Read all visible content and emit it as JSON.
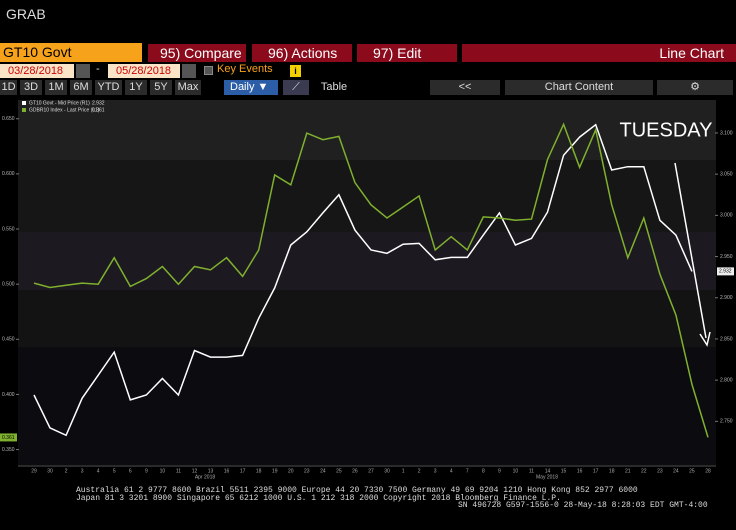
{
  "header": {
    "title": "GRAB"
  },
  "toolbar": {
    "security": "GT10 Govt",
    "compare": "95) Compare",
    "actions": "96) Actions",
    "edit": "97) Edit",
    "view": "Line Chart"
  },
  "range": {
    "start": "03/28/2018",
    "separator": "-",
    "end": "05/28/2018",
    "key_events": "Key Events"
  },
  "periods": [
    "1D",
    "3D",
    "1M",
    "6M",
    "YTD",
    "1Y",
    "5Y",
    "Max"
  ],
  "frequency": "Daily",
  "table": "Table",
  "back": "<<",
  "chart_content": "Chart Content",
  "chart_data": {
    "type": "line",
    "categories": [
      "29",
      "30",
      "2",
      "3",
      "4",
      "5",
      "6",
      "9",
      "10",
      "11",
      "12",
      "13",
      "16",
      "17",
      "18",
      "19",
      "20",
      "23",
      "24",
      "25",
      "26",
      "27",
      "30",
      "1",
      "2",
      "3",
      "4",
      "7",
      "8",
      "9",
      "10",
      "11",
      "14",
      "15",
      "16",
      "17",
      "18",
      "21",
      "22",
      "23",
      "24",
      "25",
      "28"
    ],
    "month_labels": [
      "Apr 2018",
      "May 2018"
    ],
    "series": [
      {
        "name": "GT10 Govt - Mid Price (R1)",
        "color": "#ffffff",
        "axis": "y2",
        "values": [
          2.782,
          2.742,
          2.733,
          2.778,
          2.806,
          2.834,
          2.776,
          2.782,
          2.802,
          2.782,
          2.836,
          2.828,
          2.828,
          2.83,
          2.875,
          2.912,
          2.964,
          2.98,
          3.003,
          3.025,
          2.982,
          2.958,
          2.954,
          2.965,
          2.966,
          2.946,
          2.949,
          2.949,
          2.976,
          3.003,
          2.964,
          2.972,
          3.004,
          3.073,
          3.095,
          3.11,
          3.055,
          3.059,
          3.059,
          2.994,
          2.976,
          2.932,
          null
        ]
      },
      {
        "name": "GDBR10 Index - Last Price (L1)",
        "color": "#7fb12e",
        "values": [
          0.501,
          0.497,
          0.499,
          0.501,
          0.5,
          0.524,
          0.498,
          0.505,
          0.516,
          0.5,
          0.516,
          0.513,
          0.524,
          0.507,
          0.531,
          0.599,
          0.59,
          0.637,
          0.631,
          0.634,
          0.592,
          0.572,
          0.56,
          0.57,
          0.58,
          0.531,
          0.543,
          0.531,
          0.561,
          0.56,
          0.558,
          0.559,
          0.613,
          0.645,
          0.606,
          0.64,
          0.572,
          0.524,
          0.56,
          0.509,
          0.472,
          0.409,
          0.361
        ]
      }
    ],
    "ylim": [
      0.336,
      0.667
    ],
    "yticks": [
      {
        "value": 0.65,
        "label": "0.650"
      },
      {
        "value": 0.6,
        "label": "0.600"
      },
      {
        "value": 0.55,
        "label": "0.550"
      },
      {
        "value": 0.5,
        "label": "0.500"
      },
      {
        "value": 0.45,
        "label": "0.450"
      },
      {
        "value": 0.4,
        "label": "0.400"
      },
      {
        "value": 0.35,
        "label": "0.350"
      }
    ],
    "y2lim": [
      2.697,
      3.14
    ],
    "y2ticks": [
      {
        "value": 3.1,
        "label": "3.100"
      },
      {
        "value": 3.05,
        "label": "3.050"
      },
      {
        "value": 3,
        "label": "3.000"
      },
      {
        "value": 2.95,
        "label": "2.950"
      },
      {
        "value": 2.9,
        "label": "2.900"
      },
      {
        "value": 2.85,
        "label": "2.850"
      },
      {
        "value": 2.8,
        "label": "2.800"
      },
      {
        "value": 2.75,
        "label": "2.750"
      }
    ],
    "annotation": "TUESDAY"
  },
  "footer": [
    "Australia 61 2 9777 8600 Brazil 5511 2395 9000 Europe 44 20 7330 7500 Germany 49 69 9204 1210 Hong Kong 852 2977 6000",
    "Japan 81 3 3201 8900 Singapore 65 6212 1000 U.S. 1 212 318 2000 Copyright 2018 Bloomberg Finance L.P.",
    "SN 496728 G597-1556-0 28-May-18 8:28:03 EDT GMT-4:00"
  ]
}
